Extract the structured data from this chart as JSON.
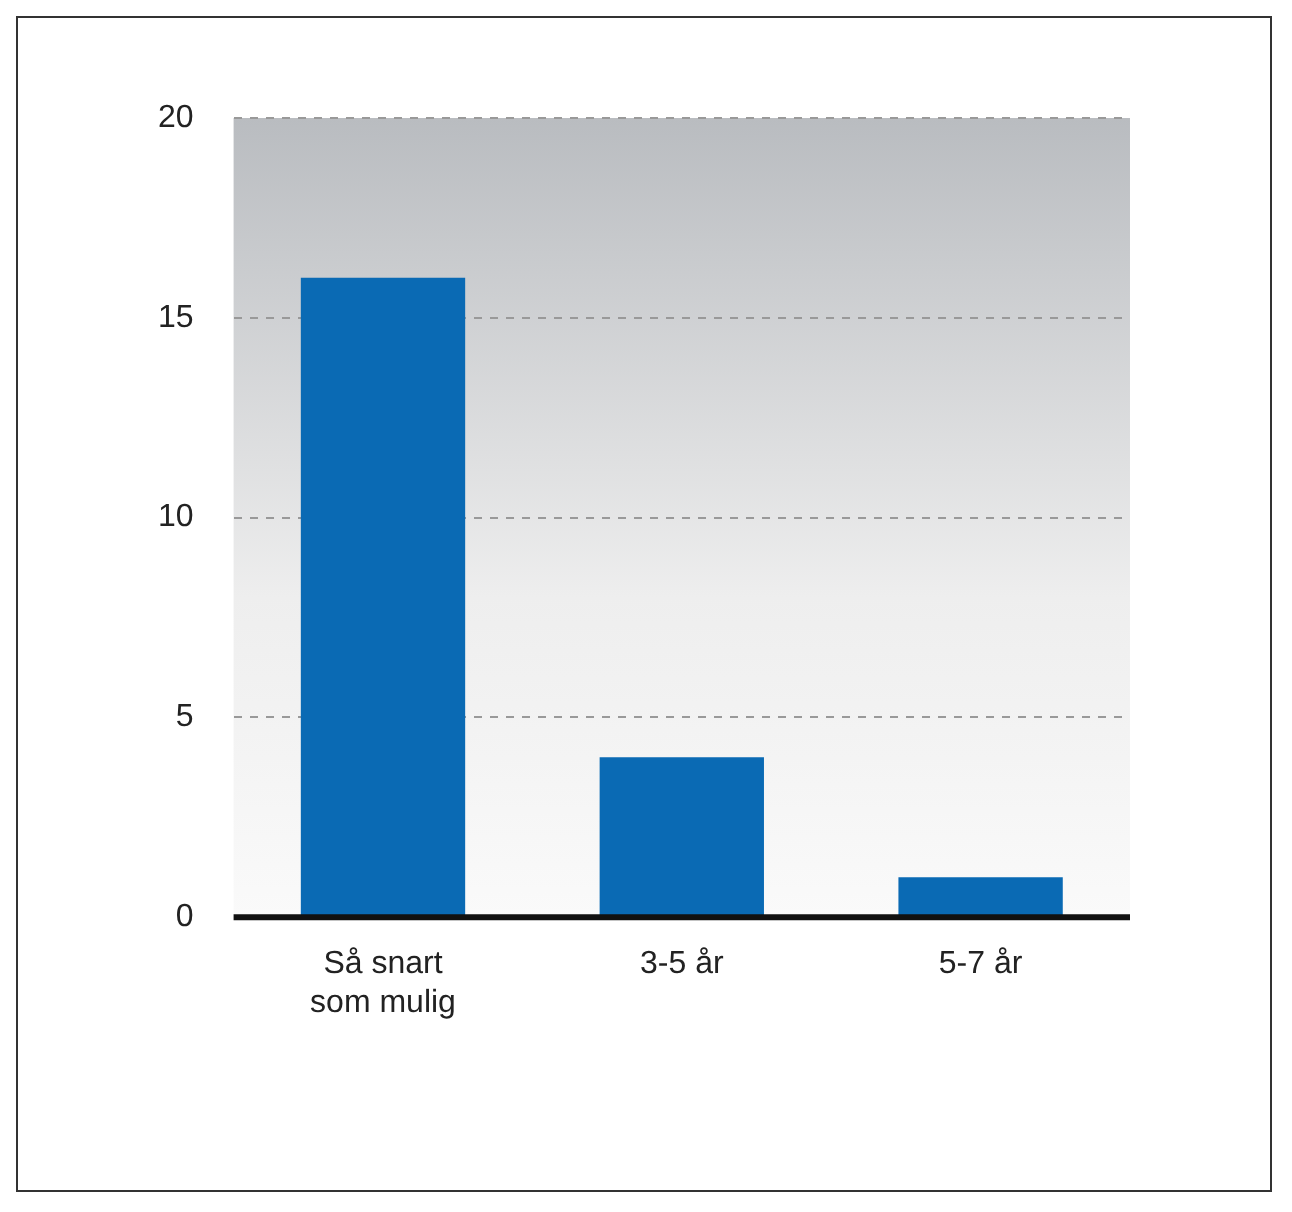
{
  "chart_data": {
    "type": "bar",
    "categories": [
      "Så snart\nsom mulig",
      "3-5 år",
      "5-7 år"
    ],
    "values": [
      16,
      4,
      1
    ],
    "color": "#0a6ab4",
    "ylim": [
      0,
      20
    ],
    "yticks": [
      0,
      5,
      10,
      15,
      20
    ],
    "grid": "y"
  }
}
